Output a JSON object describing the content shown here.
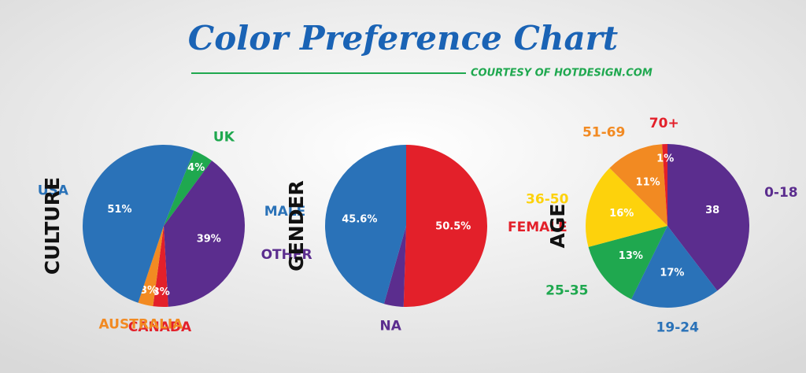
{
  "title": "Color Preference Chart",
  "subtitle": "COURTESY OF HOTDESIGN.COM",
  "chart_data": [
    {
      "type": "pie",
      "label": "CULTURE",
      "categories": [
        "UK",
        "OTHER",
        "CANADA",
        "AUSTRALIA",
        "USA"
      ],
      "values": [
        4,
        39,
        3,
        3,
        51
      ],
      "value_labels": [
        "4%",
        "39%",
        "3%",
        "3%",
        "51%"
      ],
      "colors": [
        "#1fa84f",
        "#5b2d8e",
        "#e3202a",
        "#f28a22",
        "#2a72b8"
      ]
    },
    {
      "type": "pie",
      "label": "GENDER",
      "categories": [
        "FEMALE",
        "NA",
        "MALE"
      ],
      "values": [
        50.5,
        3.9,
        45.6
      ],
      "value_labels": [
        "50.5%",
        null,
        "45.6%"
      ],
      "colors": [
        "#e3202a",
        "#5b2d8e",
        "#2a72b8"
      ]
    },
    {
      "type": "pie",
      "label": "AGE",
      "categories": [
        "0-18",
        "19-24",
        "25-35",
        "36-50",
        "51-69",
        "70+"
      ],
      "values": [
        38,
        17,
        13,
        16,
        11,
        1
      ],
      "value_labels": [
        "38",
        "17%",
        "13%",
        "16%",
        "11%",
        "1%"
      ],
      "colors": [
        "#5b2d8e",
        "#2a72b8",
        "#1fa84f",
        "#fdd20c",
        "#f28a22",
        "#e3202a"
      ]
    }
  ]
}
